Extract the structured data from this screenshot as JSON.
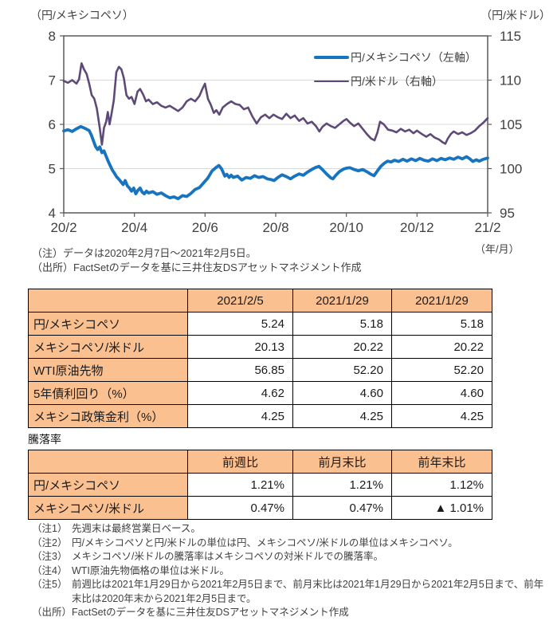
{
  "colors": {
    "series_mxn_blue": "#1874bf",
    "series_usd_purple": "#5e4a78",
    "table_header_bg": "#fac090",
    "grid_gray": "#d9d9d9",
    "axis_gray": "#595959"
  },
  "chart": {
    "left_unit": "（円/メキシコペソ）",
    "right_unit": "（円/米ドル）",
    "x_unit": "（年/月）",
    "note": "（注）データは2020年2月7日～2021年2月5日。",
    "source": "（出所）FactSetのデータを基に三井住友DSアセットマネジメント作成"
  },
  "chart_data": {
    "type": "line",
    "title": "",
    "xlabel": "（年/月）",
    "x_tick_labels": [
      "20/2",
      "20/4",
      "20/6",
      "20/8",
      "20/10",
      "20/12",
      "21/2"
    ],
    "left_axis": {
      "label": "（円/メキシコペソ）",
      "min": 4,
      "max": 8,
      "ticks": [
        8,
        7,
        6,
        5,
        4
      ]
    },
    "right_axis": {
      "label": "（円/米ドル）",
      "min": 95,
      "max": 115,
      "ticks": [
        115,
        110,
        105,
        100,
        95
      ]
    },
    "gridlines_left": [
      7,
      6,
      5
    ],
    "legend_position": "top-right-inside",
    "series": [
      {
        "name": "円/メキシコペソ（左軸）",
        "axis": "left",
        "color": "#1874bf",
        "width": 3.8,
        "points": [
          [
            0,
            5.85
          ],
          [
            1,
            5.88
          ],
          [
            2,
            5.84
          ],
          [
            3,
            5.9
          ],
          [
            4,
            5.95
          ],
          [
            5,
            5.91
          ],
          [
            6,
            5.86
          ],
          [
            6.5,
            5.76
          ],
          [
            7,
            5.63
          ],
          [
            7.5,
            5.5
          ],
          [
            8,
            5.43
          ],
          [
            8.5,
            5.49
          ],
          [
            9,
            5.36
          ],
          [
            9.5,
            5.4
          ],
          [
            10,
            5.28
          ],
          [
            10.5,
            5.16
          ],
          [
            11,
            5.06
          ],
          [
            11.5,
            4.96
          ],
          [
            12,
            4.89
          ],
          [
            12.5,
            4.81
          ],
          [
            13,
            4.76
          ],
          [
            13.5,
            4.7
          ],
          [
            14,
            4.64
          ],
          [
            14.5,
            4.73
          ],
          [
            15,
            4.61
          ],
          [
            15.5,
            4.56
          ],
          [
            16,
            4.49
          ],
          [
            16.5,
            4.56
          ],
          [
            17,
            4.43
          ],
          [
            17.5,
            4.51
          ],
          [
            18,
            4.56
          ],
          [
            18.5,
            4.47
          ],
          [
            19,
            4.43
          ],
          [
            19.5,
            4.49
          ],
          [
            20,
            4.45
          ],
          [
            21,
            4.48
          ],
          [
            22,
            4.42
          ],
          [
            23,
            4.45
          ],
          [
            24,
            4.39
          ],
          [
            25,
            4.34
          ],
          [
            26,
            4.36
          ],
          [
            27,
            4.32
          ],
          [
            28,
            4.39
          ],
          [
            29,
            4.37
          ],
          [
            30,
            4.44
          ],
          [
            31,
            4.53
          ],
          [
            32,
            4.57
          ],
          [
            33,
            4.68
          ],
          [
            34,
            4.79
          ],
          [
            35,
            4.95
          ],
          [
            36,
            5.03
          ],
          [
            36.6,
            5.07
          ],
          [
            37.2,
            5.0
          ],
          [
            38,
            4.83
          ],
          [
            38.5,
            4.87
          ],
          [
            39,
            4.8
          ],
          [
            39.5,
            4.85
          ],
          [
            40,
            4.8
          ],
          [
            41,
            4.83
          ],
          [
            42,
            4.74
          ],
          [
            43,
            4.8
          ],
          [
            44,
            4.78
          ],
          [
            45,
            4.84
          ],
          [
            46,
            4.8
          ],
          [
            47,
            4.82
          ],
          [
            48,
            4.77
          ],
          [
            49,
            4.75
          ],
          [
            49.6,
            4.73
          ],
          [
            50.5,
            4.8
          ],
          [
            51.5,
            4.86
          ],
          [
            52.5,
            4.82
          ],
          [
            53.5,
            4.77
          ],
          [
            54.5,
            4.83
          ],
          [
            55.5,
            4.88
          ],
          [
            56.5,
            4.85
          ],
          [
            57.5,
            4.92
          ],
          [
            58.5,
            4.98
          ],
          [
            59.5,
            5.03
          ],
          [
            60.2,
            5.05
          ],
          [
            61,
            4.98
          ],
          [
            62,
            4.88
          ],
          [
            63,
            4.79
          ],
          [
            63.5,
            4.77
          ],
          [
            64.2,
            4.85
          ],
          [
            65,
            4.93
          ],
          [
            66,
            4.99
          ],
          [
            66.7,
            5.01
          ],
          [
            67.5,
            5.02
          ],
          [
            68.5,
            4.98
          ],
          [
            69.5,
            4.95
          ],
          [
            70.5,
            4.98
          ],
          [
            71.5,
            4.93
          ],
          [
            72.5,
            4.87
          ],
          [
            73.2,
            4.84
          ],
          [
            74,
            4.95
          ],
          [
            74.8,
            5.05
          ],
          [
            75.6,
            5.12
          ],
          [
            76.4,
            5.17
          ],
          [
            77.2,
            5.15
          ],
          [
            78,
            5.19
          ],
          [
            79,
            5.16
          ],
          [
            80,
            5.21
          ],
          [
            81,
            5.17
          ],
          [
            82,
            5.22
          ],
          [
            83,
            5.18
          ],
          [
            84,
            5.23
          ],
          [
            85,
            5.19
          ],
          [
            86,
            5.17
          ],
          [
            87,
            5.22
          ],
          [
            88,
            5.18
          ],
          [
            89,
            5.23
          ],
          [
            90,
            5.2
          ],
          [
            91,
            5.24
          ],
          [
            92,
            5.21
          ],
          [
            93,
            5.26
          ],
          [
            94,
            5.22
          ],
          [
            95,
            5.27
          ],
          [
            95.8,
            5.22
          ],
          [
            96.5,
            5.16
          ],
          [
            97.3,
            5.2
          ],
          [
            98,
            5.17
          ],
          [
            99,
            5.21
          ],
          [
            100,
            5.24
          ]
        ]
      },
      {
        "name": "円/米ドル（右軸）",
        "axis": "right",
        "color": "#5e4a78",
        "width": 2.6,
        "points": [
          [
            0,
            109.9
          ],
          [
            1,
            109.7
          ],
          [
            2,
            110.0
          ],
          [
            3,
            109.6
          ],
          [
            3.6,
            110.1
          ],
          [
            4.2,
            111.9
          ],
          [
            4.8,
            111.2
          ],
          [
            5.4,
            110.7
          ],
          [
            6,
            109.6
          ],
          [
            6.6,
            108.3
          ],
          [
            7.2,
            107.9
          ],
          [
            7.8,
            106.8
          ],
          [
            8.4,
            104.9
          ],
          [
            9,
            102.7
          ],
          [
            9.5,
            104.6
          ],
          [
            10,
            105.3
          ],
          [
            10.4,
            106.4
          ],
          [
            10.8,
            105.0
          ],
          [
            11.2,
            106.0
          ],
          [
            11.8,
            107.7
          ],
          [
            12.4,
            110.9
          ],
          [
            13,
            111.5
          ],
          [
            13.6,
            111.2
          ],
          [
            14.2,
            110.2
          ],
          [
            14.8,
            108.3
          ],
          [
            15.4,
            107.9
          ],
          [
            16,
            108.1
          ],
          [
            16.7,
            107.3
          ],
          [
            17.4,
            108.7
          ],
          [
            18,
            109.0
          ],
          [
            18.7,
            108.4
          ],
          [
            19.4,
            107.6
          ],
          [
            20,
            107.8
          ],
          [
            21,
            107.3
          ],
          [
            22,
            107.5
          ],
          [
            23,
            107.1
          ],
          [
            24,
            106.9
          ],
          [
            25,
            107.1
          ],
          [
            26,
            106.8
          ],
          [
            27,
            106.5
          ],
          [
            28,
            106.9
          ],
          [
            29,
            107.6
          ],
          [
            30,
            107.9
          ],
          [
            31,
            107.6
          ],
          [
            32,
            108.2
          ],
          [
            32.7,
            109.0
          ],
          [
            33.3,
            109.6
          ],
          [
            34,
            107.9
          ],
          [
            34.7,
            107.2
          ],
          [
            35.4,
            106.3
          ],
          [
            36,
            106.6
          ],
          [
            36.7,
            106.1
          ],
          [
            37.5,
            106.9
          ],
          [
            38.5,
            107.3
          ],
          [
            39.5,
            107.6
          ],
          [
            40.5,
            107.3
          ],
          [
            41.5,
            107.2
          ],
          [
            42.5,
            106.7
          ],
          [
            43.5,
            106.9
          ],
          [
            44.5,
            105.9
          ],
          [
            45.5,
            105.1
          ],
          [
            46.5,
            105.8
          ],
          [
            47.5,
            106.1
          ],
          [
            48.5,
            105.7
          ],
          [
            49.5,
            106.1
          ],
          [
            50.5,
            105.8
          ],
          [
            51.5,
            105.6
          ],
          [
            52.5,
            106.2
          ],
          [
            53.5,
            105.7
          ],
          [
            54.5,
            106.0
          ],
          [
            55.5,
            105.4
          ],
          [
            56.5,
            105.7
          ],
          [
            57.5,
            105.1
          ],
          [
            58.5,
            105.3
          ],
          [
            59.5,
            104.8
          ],
          [
            60.3,
            104.2
          ],
          [
            61,
            104.7
          ],
          [
            62,
            105.1
          ],
          [
            63,
            104.8
          ],
          [
            64,
            104.6
          ],
          [
            65,
            105.0
          ],
          [
            66,
            105.4
          ],
          [
            66.7,
            105.6
          ],
          [
            67.5,
            105.2
          ],
          [
            68.5,
            104.8
          ],
          [
            69.5,
            105.1
          ],
          [
            70.5,
            104.5
          ],
          [
            71.5,
            103.9
          ],
          [
            72.5,
            103.4
          ],
          [
            73.3,
            103.2
          ],
          [
            74,
            104.1
          ],
          [
            74.6,
            105.3
          ],
          [
            75.5,
            105.0
          ],
          [
            76.5,
            104.4
          ],
          [
            77.5,
            104.3
          ],
          [
            78.5,
            104.1
          ],
          [
            79.5,
            104.5
          ],
          [
            80.5,
            104.2
          ],
          [
            81.5,
            104.4
          ],
          [
            82.5,
            104.0
          ],
          [
            83.3,
            104.3
          ],
          [
            84.5,
            103.9
          ],
          [
            85.5,
            103.6
          ],
          [
            86.5,
            103.9
          ],
          [
            87.5,
            103.5
          ],
          [
            88.5,
            103.3
          ],
          [
            89.3,
            103.0
          ],
          [
            90,
            102.8
          ],
          [
            90.6,
            103.4
          ],
          [
            91.3,
            103.9
          ],
          [
            92,
            104.2
          ],
          [
            93,
            103.9
          ],
          [
            94,
            104.1
          ],
          [
            95,
            103.8
          ],
          [
            96,
            104.0
          ],
          [
            97,
            104.3
          ],
          [
            98,
            104.8
          ],
          [
            99,
            105.2
          ],
          [
            100,
            105.7
          ]
        ]
      }
    ]
  },
  "tables": {
    "price": {
      "headers": [
        "",
        "2021/2/5",
        "2021/1/29",
        "2021/1/29"
      ],
      "rows": [
        {
          "label": "円/メキシコペソ",
          "values": [
            "5.24",
            "5.18",
            "5.18"
          ]
        },
        {
          "label": "メキシコペソ/米ドル",
          "values": [
            "20.13",
            "20.22",
            "20.22"
          ]
        },
        {
          "label": "WTI原油先物",
          "values": [
            "56.85",
            "52.20",
            "52.20"
          ]
        },
        {
          "label": "5年債利回り（%）",
          "values": [
            "4.62",
            "4.60",
            "4.60"
          ]
        },
        {
          "label": "メキシコ政策金利（%）",
          "values": [
            "4.25",
            "4.25",
            "4.25"
          ]
        }
      ]
    },
    "change": {
      "title": "騰落率",
      "headers": [
        "",
        "前週比",
        "前月末比",
        "前年末比"
      ],
      "rows": [
        {
          "label": "円/メキシコペソ",
          "values": [
            "1.21%",
            "1.21%",
            "1.12%"
          ]
        },
        {
          "label": "メキシコペソ/米ドル",
          "values": [
            "0.47%",
            "0.47%",
            "▲ 1.01%"
          ]
        }
      ]
    }
  },
  "footnotes": [
    {
      "label": "（注1）",
      "text": "先週末は最終営業日ベース。"
    },
    {
      "label": "（注2）",
      "text": "円/メキシコペソと円/米ドルの単位は円、メキシコペソ/米ドルの単位はメキシコペソ。"
    },
    {
      "label": "（注3）",
      "text": "メキシコペソ/米ドルの騰落率はメキシコペソの対米ドルでの騰落率。"
    },
    {
      "label": "（注4）",
      "text": "WTI原油先物価格の単位は米ドル。"
    },
    {
      "label": "（注5）",
      "text": "前週比は2021年1月29日から2021年2月5日まで、前月末比は2021年1月29日から2021年2月5日まで、前年末比は2020年末から2021年2月5日まで。"
    },
    {
      "label": "（出所）",
      "text": "FactSetのデータを基に三井住友DSアセットマネジメント作成"
    }
  ]
}
